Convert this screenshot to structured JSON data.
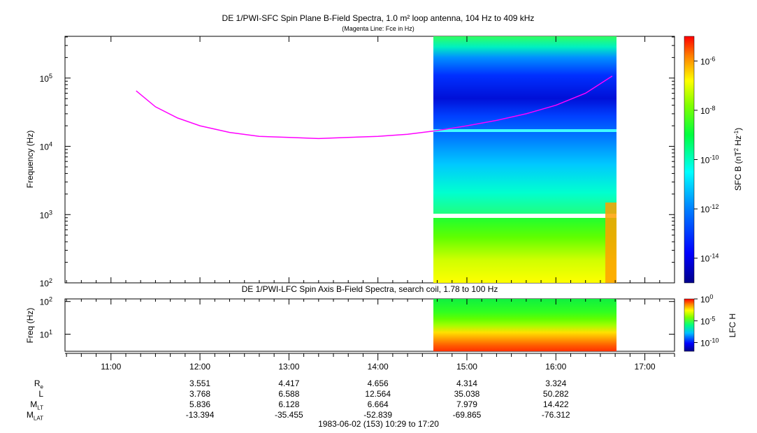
{
  "titles": {
    "main": "DE 1/PWI-SFC  Spin Plane B-Field Spectra, 1.0 m² loop antenna, 104 Hz to 409 kHz",
    "sub": "(Magenta Line: Fce in Hz)",
    "lower": "DE 1/PWI-LFC  Spin Axis B-Field Spectra, search coil, 1.78 to 100 Hz"
  },
  "footer": "1983-06-02 (153) 10:29 to 17:20",
  "chart_data": [
    {
      "type": "heatmap",
      "name": "SFC spectrogram",
      "ylabel": "Frequency (Hz)",
      "yscale": "log",
      "ylim": [
        100,
        409000
      ],
      "xlim": [
        "10:29",
        "17:20"
      ],
      "yticks": [
        {
          "value": 100,
          "mantissa": "10",
          "exp": "2"
        },
        {
          "value": 1000,
          "mantissa": "10",
          "exp": "3"
        },
        {
          "value": 10000,
          "mantissa": "10",
          "exp": "4"
        },
        {
          "value": 100000,
          "mantissa": "10",
          "exp": "5"
        }
      ],
      "data_coverage": [
        "14:36",
        "16:41"
      ],
      "colorbar": {
        "label_main": "SFC B (nT",
        "label_sup1": "2",
        "label_mid": " Hz",
        "label_sup2": "-1",
        "label_end": ")",
        "scale": "log",
        "range": [
          1e-15,
          1e-05
        ],
        "ticks": [
          {
            "value": 1e-06,
            "mantissa": "10",
            "exp": "-6"
          },
          {
            "value": 1e-08,
            "mantissa": "10",
            "exp": "-8"
          },
          {
            "value": 1e-10,
            "mantissa": "10",
            "exp": "-10"
          },
          {
            "value": 1e-12,
            "mantissa": "10",
            "exp": "-12"
          },
          {
            "value": 1e-14,
            "mantissa": "10",
            "exp": "-14"
          }
        ]
      },
      "fce_line": {
        "color": "#ff00ff",
        "points": [
          {
            "t": "11:17",
            "f": 65000
          },
          {
            "t": "11:30",
            "f": 38000
          },
          {
            "t": "11:45",
            "f": 26000
          },
          {
            "t": "12:00",
            "f": 20000
          },
          {
            "t": "12:20",
            "f": 16000
          },
          {
            "t": "12:40",
            "f": 14000
          },
          {
            "t": "13:00",
            "f": 13500
          },
          {
            "t": "13:20",
            "f": 13000
          },
          {
            "t": "13:40",
            "f": 13500
          },
          {
            "t": "14:00",
            "f": 14000
          },
          {
            "t": "14:20",
            "f": 15000
          },
          {
            "t": "14:40",
            "f": 17000
          },
          {
            "t": "15:00",
            "f": 20000
          },
          {
            "t": "15:20",
            "f": 24000
          },
          {
            "t": "15:40",
            "f": 30000
          },
          {
            "t": "16:00",
            "f": 40000
          },
          {
            "t": "16:20",
            "f": 60000
          },
          {
            "t": "16:38",
            "f": 107000
          }
        ]
      }
    },
    {
      "type": "heatmap",
      "name": "LFC spectrogram",
      "ylabel": "Freq (Hz)",
      "yscale": "log",
      "ylim": [
        3,
        120
      ],
      "yticks": [
        {
          "value": 10,
          "mantissa": "10",
          "exp": "1"
        },
        {
          "value": 100,
          "mantissa": "10",
          "exp": "2"
        }
      ],
      "data_coverage": [
        "14:36",
        "16:41"
      ],
      "colorbar": {
        "label": "LFC H",
        "scale": "log",
        "range": [
          1e-12,
          1
        ],
        "ticks": [
          {
            "value": 1,
            "mantissa": "10",
            "exp": "0"
          },
          {
            "value": 1e-05,
            "mantissa": "10",
            "exp": "-5"
          },
          {
            "value": 1e-10,
            "mantissa": "10",
            "exp": "-10"
          }
        ]
      }
    }
  ],
  "time_axis": {
    "ticks": [
      "11:00",
      "12:00",
      "13:00",
      "14:00",
      "15:00",
      "16:00",
      "17:00"
    ]
  },
  "ephemeris": {
    "rows": [
      {
        "label": "R",
        "sub": "e",
        "values": [
          "3.551",
          "4.417",
          "4.656",
          "4.314",
          "3.324"
        ]
      },
      {
        "label": "L",
        "sub": "",
        "values": [
          "3.768",
          "6.588",
          "12.564",
          "35.038",
          "50.282"
        ]
      },
      {
        "label": "M",
        "sub": "LT",
        "values": [
          "5.836",
          "6.128",
          "6.664",
          "7.979",
          "14.422"
        ]
      },
      {
        "label": "M",
        "sub": "LAT",
        "values": [
          "-13.394",
          "-35.455",
          "-52.839",
          "-69.865",
          "-76.312"
        ]
      }
    ]
  }
}
